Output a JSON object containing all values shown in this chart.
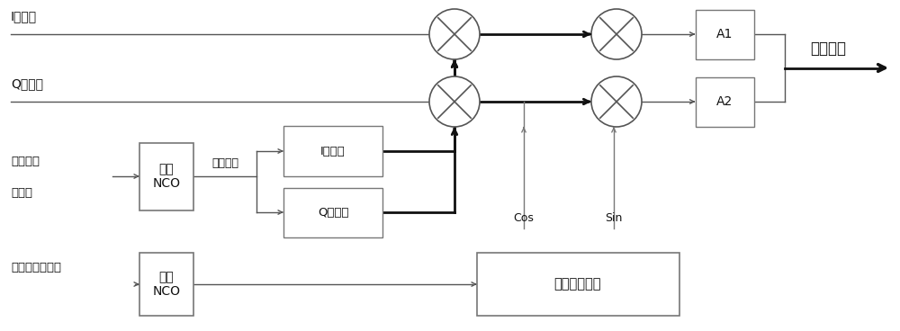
{
  "bg_color": "#ffffff",
  "line_color": "#555555",
  "thick_line": "#111111",
  "thin_line": "#777777",
  "text_color": "#111111",
  "labels": {
    "I_data": "I路数据",
    "Q_data": "Q路数据",
    "pseudo_ctrl": "伪码频率\n控制字",
    "pseudo_nco": "伪码\nNCO",
    "pseudo_clock": "伪码时钟",
    "I_pseudo": "I路伪码",
    "Q_pseudo": "Q路伪码",
    "carrier_ctrl": "载波频率控制字",
    "carrier_nco": "载波\nNCO",
    "sin_table": "正余弦查找表",
    "cos_label": "Cos",
    "sin_label": "Sin",
    "A1": "A1",
    "A2": "A2",
    "output": "扩频信号"
  }
}
